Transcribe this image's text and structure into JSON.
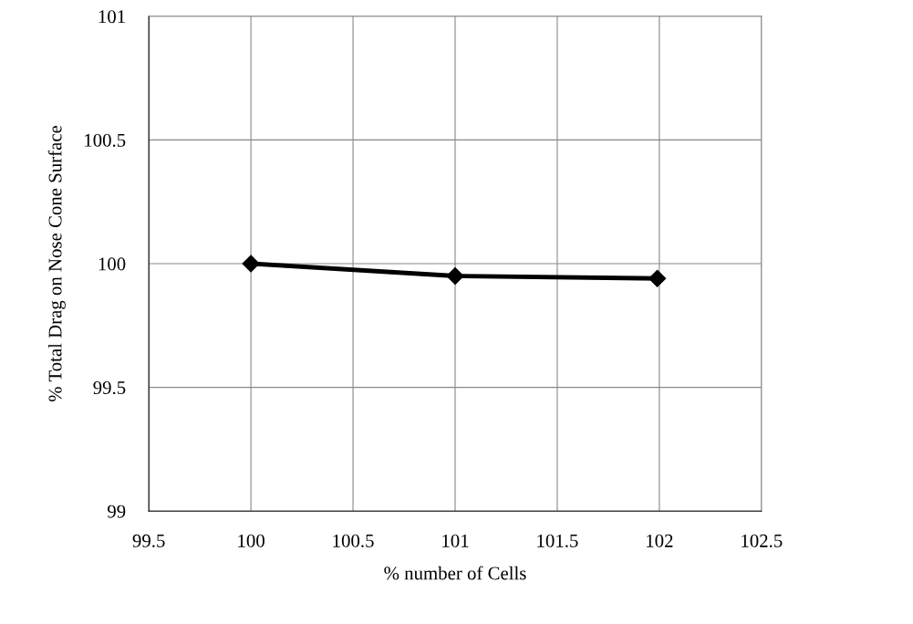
{
  "chart_data": {
    "type": "line",
    "xlabel": "% number of Cells",
    "ylabel": "% Total Drag on Nose Cone Surface",
    "x": [
      100,
      101,
      101.99
    ],
    "series": [
      {
        "color": "#000000",
        "values": [
          100,
          99.95,
          99.94
        ]
      }
    ],
    "xlim": [
      99.5,
      102.5
    ],
    "xticks": [
      99.5,
      100,
      100.5,
      101,
      101.5,
      102,
      102.5
    ],
    "ylim": [
      99,
      101
    ],
    "yticks": [
      99,
      99.5,
      100,
      100.5,
      101
    ],
    "grid": true,
    "marker": "diamond",
    "line_style": "solid"
  }
}
